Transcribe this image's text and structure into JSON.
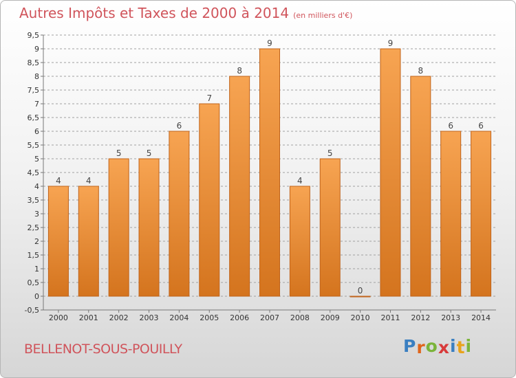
{
  "header": {
    "title": "Autres Impôts et Taxes de 2000 à 2014",
    "unit": "(en milliers d'€)"
  },
  "footer": {
    "commune": "BELLENOT-SOUS-POUILLY",
    "logo_letters": [
      "P",
      "r",
      "o",
      "x",
      "i",
      "t",
      "i"
    ],
    "logo_colors": [
      "#3a7fc1",
      "#e0651b",
      "#7bb43a",
      "#d83a3a",
      "#3a7fc1",
      "#e8a31c",
      "#7bb43a"
    ]
  },
  "colors": {
    "bar_top": "#f7a452",
    "bar_bottom": "#d4741e",
    "bar_stroke": "#c0631a",
    "grid": "#a0a0a0",
    "title": "#d0545b"
  },
  "chart_data": {
    "type": "bar",
    "categories": [
      "2000",
      "2001",
      "2002",
      "2003",
      "2004",
      "2005",
      "2006",
      "2007",
      "2008",
      "2009",
      "2010",
      "2011",
      "2012",
      "2013",
      "2014"
    ],
    "values": [
      4,
      4,
      5,
      5,
      6,
      7,
      8,
      9,
      4,
      5,
      0,
      9,
      8,
      6,
      6
    ],
    "data_labels": [
      "4",
      "4",
      "5",
      "5",
      "6",
      "7",
      "8",
      "9",
      "4",
      "5",
      "0",
      "9",
      "8",
      "6",
      "6"
    ],
    "yticks": [
      -0.5,
      0,
      0.5,
      1,
      1.5,
      2,
      2.5,
      3,
      3.5,
      4,
      4.5,
      5,
      5.5,
      6,
      6.5,
      7,
      7.5,
      8,
      8.5,
      9,
      9.5
    ],
    "ytick_labels": [
      "-0,5",
      "0",
      "0,5",
      "1",
      "1,5",
      "2",
      "2,5",
      "3",
      "3,5",
      "4",
      "4,5",
      "5",
      "5,5",
      "6",
      "6,5",
      "7",
      "7,5",
      "8",
      "8,5",
      "9",
      "9,5"
    ],
    "ylim": [
      -0.5,
      9.5
    ],
    "grid": "horizontal dashed",
    "title": "Autres Impôts et Taxes de 2000 à 2014",
    "ylabel": "",
    "xlabel": ""
  }
}
